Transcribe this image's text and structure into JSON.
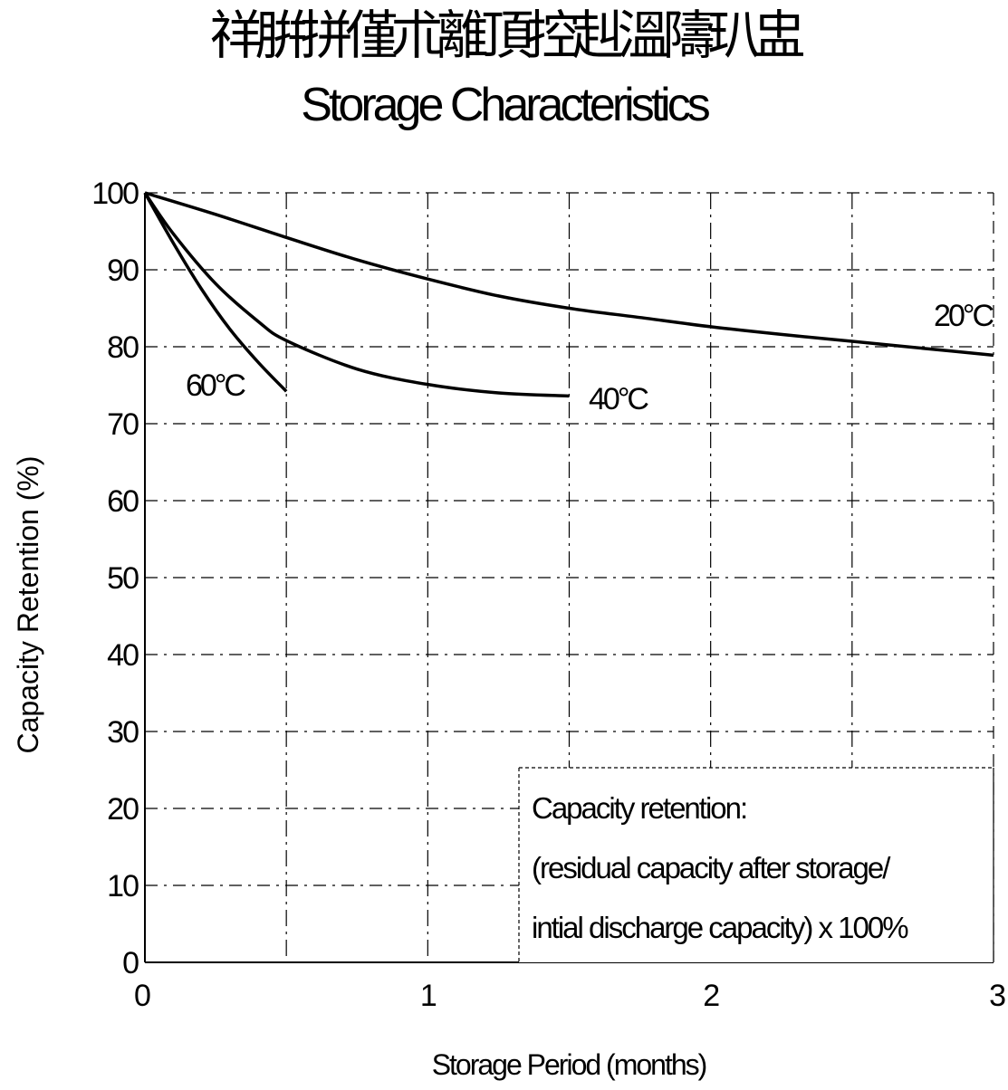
{
  "title_cjk": "祥腁拼僅朮離頂控赳溫隯玐盅",
  "title": "Storage Characteristics",
  "chart_data": {
    "type": "line",
    "title": "Storage Characteristics",
    "xlabel": "Storage Period (months)",
    "ylabel": "Capacity Retention (%)",
    "xlim": [
      0,
      3
    ],
    "ylim": [
      0,
      100
    ],
    "x_ticks": [
      0,
      1,
      2,
      3
    ],
    "y_ticks": [
      0,
      10,
      20,
      30,
      40,
      50,
      60,
      70,
      80,
      90,
      100
    ],
    "grid": true,
    "series": [
      {
        "name": "20°C",
        "x": [
          0,
          0.25,
          0.5,
          0.75,
          1.0,
          1.25,
          1.5,
          1.75,
          2.0,
          2.25,
          2.5,
          2.75,
          3.0
        ],
        "y": [
          100,
          97.2,
          94.2,
          91.3,
          88.8,
          86.6,
          85.0,
          83.8,
          82.6,
          81.6,
          80.7,
          79.8,
          78.9
        ]
      },
      {
        "name": "40°C",
        "x": [
          0,
          0.1,
          0.25,
          0.4,
          0.5,
          0.75,
          1.0,
          1.25,
          1.5
        ],
        "y": [
          100,
          94.7,
          88.2,
          83.3,
          80.8,
          77.1,
          75.1,
          74.0,
          73.6
        ]
      },
      {
        "name": "60°C",
        "x": [
          0,
          0.1,
          0.2,
          0.3,
          0.4,
          0.5
        ],
        "y": [
          100,
          93.5,
          87.5,
          82.3,
          78.0,
          74.2
        ]
      }
    ],
    "annotation": [
      "Capacity retention:",
      "(residual capacity after storage/",
      "intial discharge capacity) x 100%"
    ]
  }
}
